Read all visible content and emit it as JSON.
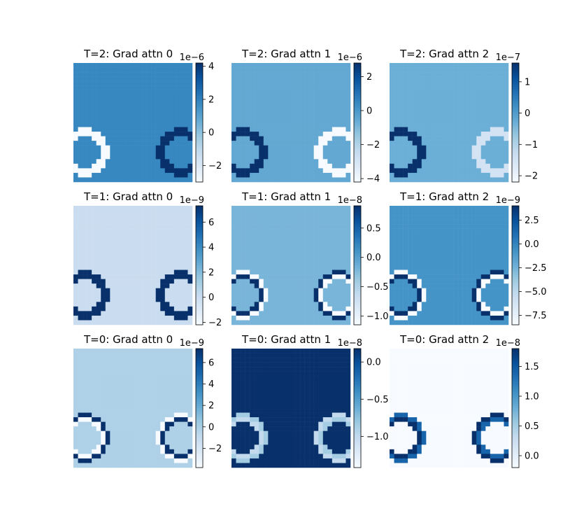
{
  "colormap": "Blues",
  "chart_data": [
    {
      "type": "heatmap",
      "title": "T=2: Grad attn 0",
      "exponent": "1e−6",
      "ticks": [
        4,
        2,
        0,
        -2
      ],
      "tick_labels": [
        "4",
        "2",
        "0",
        "−2"
      ],
      "vmin": -3.0,
      "vmax": 4.2,
      "background": 1.8,
      "ring_left": {
        "inner": -3.0,
        "outer": -3.0,
        "center": 1.8
      },
      "ring_right": {
        "inner": 4.2,
        "outer": 4.2,
        "center": 1.8
      }
    },
    {
      "type": "heatmap",
      "title": "T=2: Grad attn 1",
      "exponent": "1e−6",
      "ticks": [
        2,
        0,
        -2,
        -4
      ],
      "tick_labels": [
        "2",
        "0",
        "−2",
        "−4"
      ],
      "vmin": -4.2,
      "vmax": 2.8,
      "background": -0.5,
      "ring_left": {
        "inner": 2.8,
        "outer": 2.8,
        "center": -0.5
      },
      "ring_right": {
        "inner": -4.2,
        "outer": -4.2,
        "center": -0.5
      }
    },
    {
      "type": "heatmap",
      "title": "T=2: Grad attn 2",
      "exponent": "1e−7",
      "ticks": [
        1,
        0,
        -1,
        -2
      ],
      "tick_labels": [
        "1",
        "0",
        "−1",
        "−2"
      ],
      "vmin": -2.2,
      "vmax": 1.6,
      "background": -0.3,
      "ring_left": {
        "inner": 1.6,
        "outer": 1.6,
        "center": -0.3
      },
      "ring_right": {
        "inner": -1.5,
        "outer": -1.5,
        "center": -0.3
      }
    },
    {
      "type": "heatmap",
      "title": "T=1: Grad attn 0",
      "exponent": "1e−9",
      "ticks": [
        6,
        4,
        2,
        0,
        -2
      ],
      "tick_labels": [
        "6",
        "4",
        "2",
        "0",
        "−2"
      ],
      "vmin": -2.2,
      "vmax": 7.3,
      "background": 0.0,
      "ring_left": {
        "inner": 7.3,
        "outer": 7.3,
        "center": 0.0
      },
      "ring_right": {
        "inner": 7.3,
        "outer": 7.3,
        "center": 0.0
      }
    },
    {
      "type": "heatmap",
      "title": "T=1: Grad attn 1",
      "exponent": "1e−8",
      "ticks": [
        0.5,
        0.0,
        -0.5,
        -1.0
      ],
      "tick_labels": [
        "0.5",
        "0.0",
        "−0.5",
        "−1.0"
      ],
      "vmin": -1.15,
      "vmax": 0.88,
      "background": -0.2,
      "ring_left": {
        "inner": 0.88,
        "outer": -1.15,
        "center": -0.2
      },
      "ring_right": {
        "inner": -1.15,
        "outer": 0.88,
        "center": -0.2
      }
    },
    {
      "type": "heatmap",
      "title": "T=1: Grad attn 2",
      "exponent": "1e−9",
      "ticks": [
        2.5,
        0.0,
        -2.5,
        -5.0,
        -7.5
      ],
      "tick_labels": [
        "2.5",
        "0.0",
        "−2.5",
        "−5.0",
        "−7.5"
      ],
      "vmin": -8.5,
      "vmax": 4.0,
      "background": -0.8,
      "ring_left": {
        "inner": 4.0,
        "outer": -8.5,
        "center": -0.8
      },
      "ring_right": {
        "inner": -8.5,
        "outer": 4.0,
        "center": -0.8
      }
    },
    {
      "type": "heatmap",
      "title": "T=0: Grad attn 0",
      "exponent": "1e−9",
      "ticks": [
        6,
        4,
        2,
        0,
        -2
      ],
      "tick_labels": [
        "6",
        "4",
        "2",
        "0",
        "−2"
      ],
      "vmin": -3.8,
      "vmax": 7.3,
      "background": -0.2,
      "ring_left": {
        "inner": -3.8,
        "outer": 7.3,
        "center": -0.2
      },
      "ring_right": {
        "inner": 7.3,
        "outer": -3.8,
        "center": -0.2
      }
    },
    {
      "type": "heatmap",
      "title": "T=0: Grad attn 1",
      "exponent": "1e−8",
      "ticks": [
        0.0,
        -0.5,
        -1.0
      ],
      "tick_labels": [
        "0.0",
        "−0.5",
        "−1.0"
      ],
      "vmin": -1.42,
      "vmax": 0.18,
      "background": 0.18,
      "ring_left": {
        "inner": -1.0,
        "outer": -0.85,
        "center": 0.18
      },
      "ring_right": {
        "inner": -0.85,
        "outer": -1.0,
        "center": 0.18
      }
    },
    {
      "type": "heatmap",
      "title": "T=0: Grad attn 2",
      "exponent": "1e−8",
      "ticks": [
        1.5,
        1.0,
        0.5,
        0.0
      ],
      "tick_labels": [
        "1.5",
        "1.0",
        "0.5",
        "0.0"
      ],
      "vmin": -0.2,
      "vmax": 1.8,
      "background": -0.2,
      "ring_left": {
        "inner": 1.8,
        "outer": 1.4,
        "center": -0.2
      },
      "ring_right": {
        "inner": 1.4,
        "outer": 1.8,
        "center": -0.2
      }
    }
  ]
}
